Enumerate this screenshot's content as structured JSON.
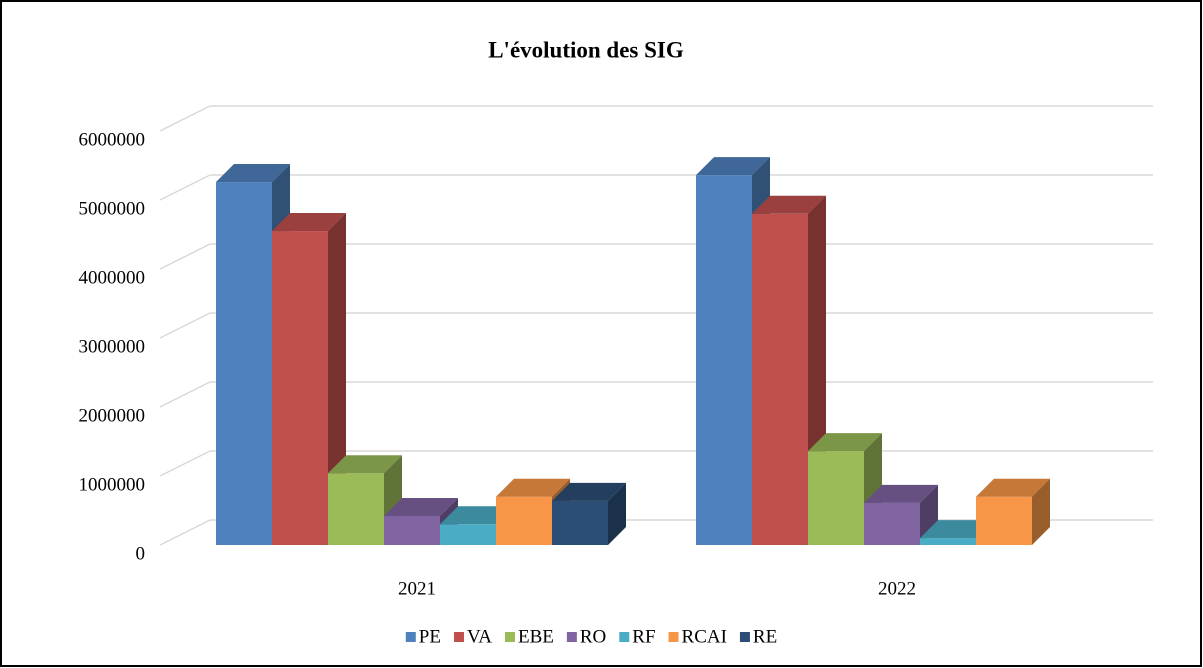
{
  "chart_data": {
    "type": "bar3d",
    "title": "L'évolution des SIG",
    "categories": [
      "2021",
      "2022"
    ],
    "series": [
      {
        "name": "PE",
        "color": "#4f81bd",
        "values": [
          5260000,
          5360000
        ]
      },
      {
        "name": "VA",
        "color": "#c0504d",
        "values": [
          4550000,
          4800000
        ]
      },
      {
        "name": "EBE",
        "color": "#9bbb59",
        "values": [
          1040000,
          1360000
        ]
      },
      {
        "name": "RO",
        "color": "#8064a2",
        "values": [
          420000,
          610000
        ]
      },
      {
        "name": "RF",
        "color": "#4bacc6",
        "values": [
          300000,
          100000
        ]
      },
      {
        "name": "RCAI",
        "color": "#f79646",
        "values": [
          700000,
          700000
        ]
      },
      {
        "name": "RE",
        "color": "#2c4d75",
        "values": [
          640000,
          null
        ]
      }
    ],
    "ylim": [
      0,
      6000000
    ],
    "yticks": [
      0,
      1000000,
      2000000,
      3000000,
      4000000,
      5000000,
      6000000
    ],
    "grid": true,
    "legend": "bottom"
  }
}
